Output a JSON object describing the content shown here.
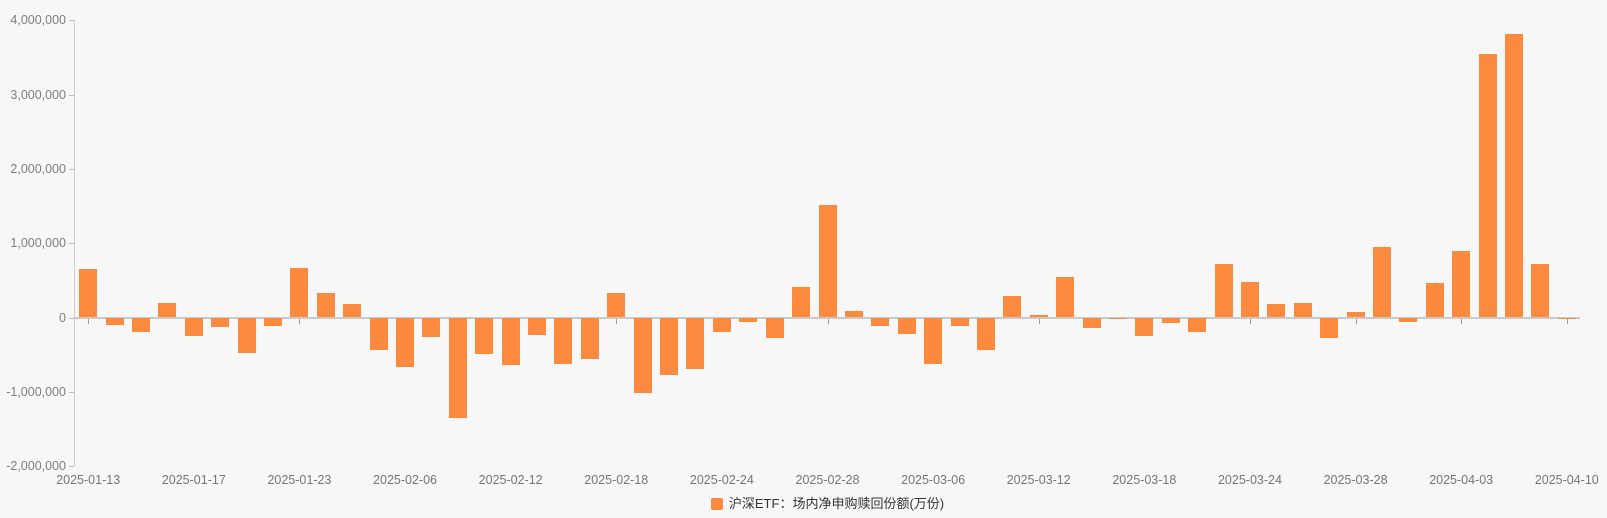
{
  "chart_data": {
    "type": "bar",
    "title": "",
    "xlabel": "",
    "ylabel": "",
    "legend_position": "bottom-center",
    "grid": false,
    "ylim": [
      -2000000,
      4000000
    ],
    "y_ticks": [
      4000000,
      3000000,
      2000000,
      1000000,
      0,
      -1000000,
      -2000000
    ],
    "y_tick_labels": [
      "4,000,000",
      "3,000,000",
      "2,000,000",
      "1,000,000",
      "0",
      "-1,000,000",
      "-2,000,000"
    ],
    "x_tick_labels": [
      "2025-01-13",
      "2025-01-17",
      "2025-01-23",
      "2025-02-06",
      "2025-02-12",
      "2025-02-18",
      "2025-02-24",
      "2025-02-28",
      "2025-03-06",
      "2025-03-12",
      "2025-03-18",
      "2025-03-24",
      "2025-03-28",
      "2025-04-03",
      "2025-04-10"
    ],
    "x_tick_interval": 4,
    "x": [
      "2025-01-13",
      "2025-01-14",
      "2025-01-15",
      "2025-01-16",
      "2025-01-17",
      "2025-01-20",
      "2025-01-21",
      "2025-01-22",
      "2025-01-23",
      "2025-01-24",
      "2025-01-27",
      "2025-02-05",
      "2025-02-06",
      "2025-02-07",
      "2025-02-10",
      "2025-02-11",
      "2025-02-12",
      "2025-02-13",
      "2025-02-14",
      "2025-02-17",
      "2025-02-18",
      "2025-02-19",
      "2025-02-20",
      "2025-02-21",
      "2025-02-24",
      "2025-02-25",
      "2025-02-26",
      "2025-02-27",
      "2025-02-28",
      "2025-03-03",
      "2025-03-04",
      "2025-03-05",
      "2025-03-06",
      "2025-03-07",
      "2025-03-10",
      "2025-03-11",
      "2025-03-12",
      "2025-03-13",
      "2025-03-14",
      "2025-03-17",
      "2025-03-18",
      "2025-03-19",
      "2025-03-20",
      "2025-03-21",
      "2025-03-24",
      "2025-03-25",
      "2025-03-26",
      "2025-03-27",
      "2025-03-28",
      "2025-03-31",
      "2025-04-01",
      "2025-04-02",
      "2025-04-03",
      "2025-04-07",
      "2025-04-08",
      "2025-04-09",
      "2025-04-10"
    ],
    "series": [
      {
        "name": "沪深ETF：场内净申购赎回份额(万份)",
        "values": [
          650000,
          -95000,
          -195000,
          190000,
          -245000,
          -130000,
          -475000,
          -115000,
          660000,
          330000,
          185000,
          -440000,
          -665000,
          -265000,
          -1350000,
          -485000,
          -640000,
          -240000,
          -630000,
          -565000,
          330000,
          -1010000,
          -780000,
          -690000,
          -190000,
          -65000,
          -270000,
          410000,
          1520000,
          85000,
          -110000,
          -220000,
          -630000,
          -110000,
          -435000,
          290000,
          35000,
          550000,
          -135000,
          -25000,
          -250000,
          -80000,
          -200000,
          715000,
          475000,
          185000,
          200000,
          -270000,
          70000,
          955000,
          -60000,
          470000,
          895000,
          3550000,
          3820000,
          715000,
          -25000
        ]
      }
    ],
    "colors": {
      "bar": "#fc8a3e",
      "background": "#f7f7f7",
      "axis_line": "#cccccc",
      "tick": "#999999",
      "axis_label": "#757575",
      "legend_text": "#333333"
    },
    "legend": {
      "label": "沪深ETF：场内净申购赎回份额(万份)"
    }
  }
}
